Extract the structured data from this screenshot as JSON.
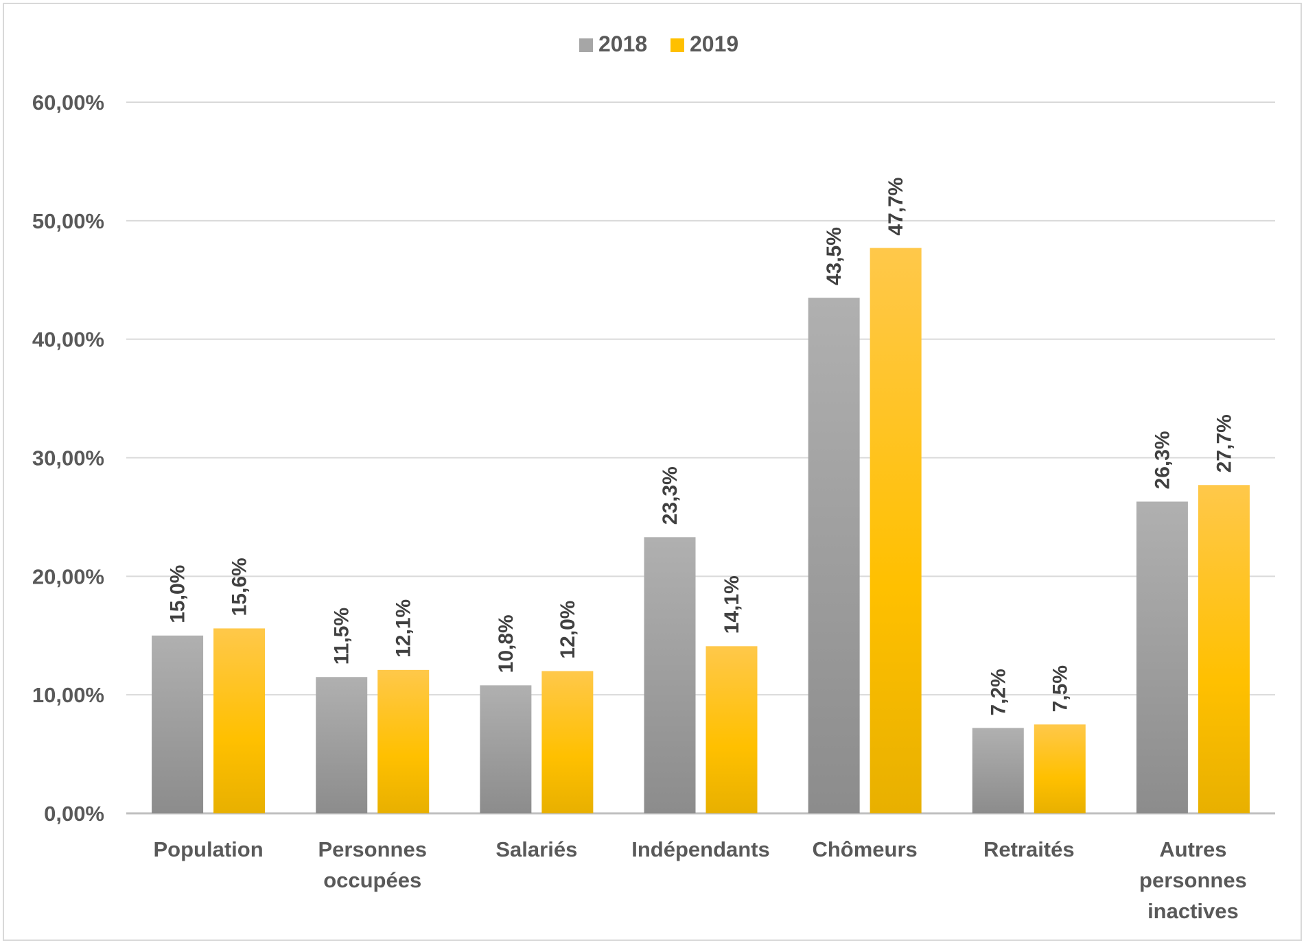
{
  "chart_data": {
    "type": "bar",
    "title": "",
    "xlabel": "",
    "ylabel": "",
    "ylim": [
      0,
      60
    ],
    "yticks": [
      "0,00%",
      "10,00%",
      "20,00%",
      "30,00%",
      "40,00%",
      "50,00%",
      "60,00%"
    ],
    "grid": true,
    "legend_position": "top-center",
    "categories": [
      [
        "Population"
      ],
      [
        "Personnes",
        "occupées"
      ],
      [
        "Salariés"
      ],
      [
        "Indépendants"
      ],
      [
        "Chômeurs"
      ],
      [
        "Retraités"
      ],
      [
        "Autres",
        "personnes",
        "inactives"
      ]
    ],
    "series": [
      {
        "name": "2018",
        "color": "#a6a6a6",
        "values": [
          15.0,
          11.5,
          10.8,
          23.3,
          43.5,
          7.2,
          26.3
        ],
        "labels": [
          "15,0%",
          "11,5%",
          "10,8%",
          "23,3%",
          "43,5%",
          "7,2%",
          "26,3%"
        ]
      },
      {
        "name": "2019",
        "color": "#ffc000",
        "values": [
          15.6,
          12.1,
          12.0,
          14.1,
          47.7,
          7.5,
          27.7
        ],
        "labels": [
          "15,6%",
          "12,1%",
          "12,0%",
          "14,1%",
          "47,7%",
          "7,5%",
          "27,7%"
        ]
      }
    ]
  }
}
